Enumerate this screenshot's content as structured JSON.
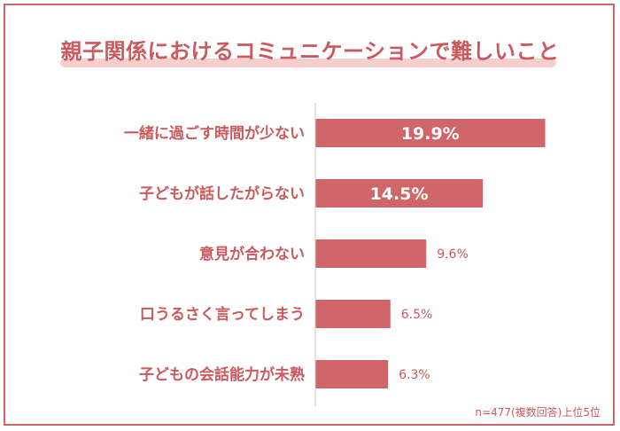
{
  "title": "親子関係におけるコミュニケーションで難しいこと",
  "note": "n=477(複数回答)上位5位",
  "colors": {
    "accent": "#cf666a",
    "bar": "#d0666a",
    "label": "#c95a5e",
    "axis": "#c8c8c8"
  },
  "chart_data": {
    "type": "bar",
    "orientation": "horizontal",
    "unit": "%",
    "xlim": [
      0,
      24
    ],
    "categories": [
      "一緒に過ごす時間が少ない",
      "子どもが話したがらない",
      "意見が合わない",
      "口うるさく言ってしまう",
      "子どもの会話能力が未熟"
    ],
    "values": [
      19.9,
      14.5,
      9.6,
      6.5,
      6.3
    ],
    "value_labels": [
      "19.9%",
      "14.5%",
      "9.6%",
      "6.5%",
      "6.3%"
    ]
  }
}
